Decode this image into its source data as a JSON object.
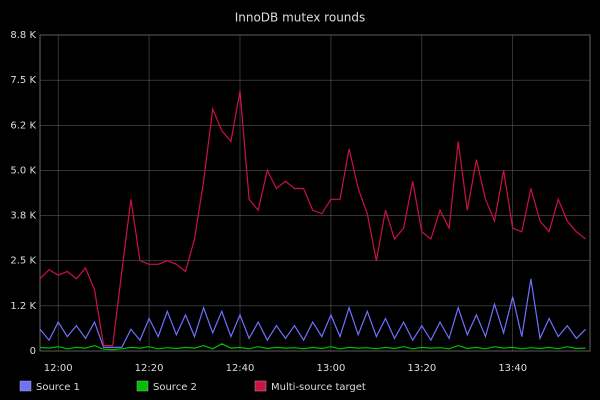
{
  "chart_data": {
    "type": "line",
    "title": "InnoDB mutex rounds",
    "x": [
      "11:56",
      "11:58",
      "12:00",
      "12:02",
      "12:04",
      "12:06",
      "12:08",
      "12:10",
      "12:12",
      "12:14",
      "12:16",
      "12:18",
      "12:20",
      "12:22",
      "12:24",
      "12:26",
      "12:28",
      "12:30",
      "12:32",
      "12:34",
      "12:36",
      "12:38",
      "12:40",
      "12:42",
      "12:44",
      "12:46",
      "12:48",
      "12:50",
      "12:52",
      "12:54",
      "12:56",
      "12:58",
      "13:00",
      "13:02",
      "13:04",
      "13:06",
      "13:08",
      "13:10",
      "13:12",
      "13:14",
      "13:16",
      "13:18",
      "13:20",
      "13:22",
      "13:24",
      "13:26",
      "13:28",
      "13:30",
      "13:32",
      "13:34",
      "13:36",
      "13:38",
      "13:40",
      "13:42",
      "13:44",
      "13:46",
      "13:48",
      "13:50",
      "13:52",
      "13:54",
      "13:56"
    ],
    "series": [
      {
        "name": "Source 1",
        "color": "#7070ff",
        "values": [
          600,
          300,
          800,
          400,
          700,
          350,
          800,
          100,
          100,
          100,
          600,
          300,
          900,
          400,
          1100,
          450,
          1000,
          400,
          1200,
          500,
          1100,
          400,
          1000,
          350,
          800,
          300,
          700,
          350,
          700,
          300,
          800,
          400,
          1000,
          400,
          1200,
          450,
          1100,
          400,
          900,
          350,
          800,
          300,
          700,
          300,
          800,
          350,
          1200,
          450,
          1000,
          400,
          1300,
          500,
          1500,
          400,
          2000,
          350,
          900,
          400,
          700,
          350,
          600
        ]
      },
      {
        "name": "Source 2",
        "color": "#00c000",
        "values": [
          100,
          80,
          120,
          60,
          100,
          80,
          150,
          50,
          40,
          60,
          100,
          80,
          120,
          60,
          90,
          70,
          100,
          80,
          150,
          60,
          200,
          80,
          100,
          60,
          120,
          70,
          100,
          80,
          90,
          60,
          100,
          70,
          120,
          60,
          100,
          80,
          90,
          60,
          100,
          70,
          120,
          60,
          100,
          80,
          90,
          60,
          150,
          70,
          100,
          60,
          120,
          80,
          100,
          60,
          90,
          70,
          100,
          60,
          120,
          70,
          80
        ]
      },
      {
        "name": "Multi-source target",
        "color": "#cc1144",
        "values": [
          2000,
          2250,
          2100,
          2200,
          2000,
          2300,
          1700,
          150,
          150,
          2200,
          4200,
          2500,
          2400,
          2400,
          2500,
          2400,
          2200,
          3100,
          4700,
          6700,
          6100,
          5800,
          7200,
          4200,
          3900,
          5000,
          4500,
          4700,
          4500,
          4500,
          3900,
          3800,
          4200,
          4200,
          5600,
          4500,
          3800,
          2500,
          3900,
          3100,
          3400,
          4700,
          3300,
          3100,
          3900,
          3400,
          5800,
          3900,
          5300,
          4200,
          3600,
          5000,
          3400,
          3300,
          4500,
          3600,
          3300,
          4200,
          3600,
          3300,
          3100
        ]
      }
    ],
    "xlim": [
      "11:56",
      "13:57"
    ],
    "xticks": [
      "12:00",
      "12:20",
      "12:40",
      "13:00",
      "13:20",
      "13:40"
    ],
    "ylim": [
      0,
      8750
    ],
    "yticks": [
      0,
      {
        "value": 1250,
        "label": "1.2 K"
      },
      {
        "value": 2500,
        "label": "2.5 K"
      },
      {
        "value": 3750,
        "label": "3.8 K"
      },
      {
        "value": 5000,
        "label": "5.0 K"
      },
      {
        "value": 6250,
        "label": "6.2 K"
      },
      {
        "value": 7500,
        "label": "7.5 K"
      },
      {
        "value": 8750,
        "label": "8.8 K"
      }
    ],
    "grid": true
  }
}
